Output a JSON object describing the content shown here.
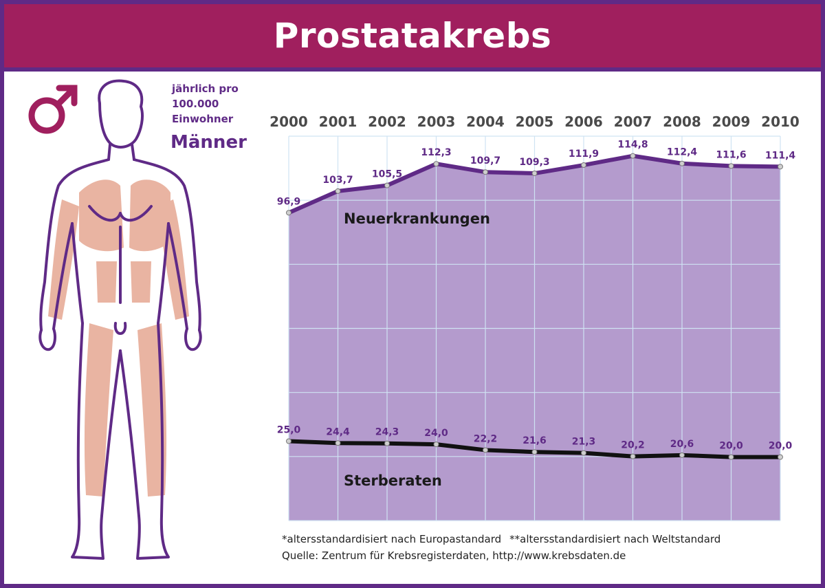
{
  "header": {
    "title": "Prostatakrebs"
  },
  "unit_label": [
    "jährlich pro",
    "100.000",
    "Einwohner"
  ],
  "group_label": "Männer",
  "footer": {
    "note1": "*altersstandardisiert nach Europastandard",
    "note2": "**altersstandardisiert nach Weltstandard",
    "source": "Quelle: Zentrum für Krebsregisterdaten, http://www.krebsdaten.de"
  },
  "icons": {
    "gender": "male-symbol-icon",
    "figure": "male-body-figure"
  },
  "colors": {
    "title_bg": "#a01f5e",
    "frame": "#5f2a86",
    "area_fill": "#b49bcd",
    "incidence_line": "#5f2a86",
    "mortality_line": "#111111",
    "grid": "#cfe3f2",
    "value_label": "#5f2a86"
  },
  "chart_data": {
    "type": "area",
    "categories": [
      "2000",
      "2001",
      "2002",
      "2003",
      "2004",
      "2005",
      "2006",
      "2007",
      "2008",
      "2009",
      "2010"
    ],
    "x_tick_labels": [
      "2000",
      "2001",
      "2002",
      "2003",
      "2004",
      "2005",
      "2006",
      "2007",
      "2008",
      "2009",
      "2010"
    ],
    "series": [
      {
        "name": "Neuerkrankungen",
        "values": [
          96.9,
          103.7,
          105.5,
          112.3,
          109.7,
          109.3,
          111.9,
          114.8,
          112.4,
          111.6,
          111.4
        ],
        "labels": [
          "96,9",
          "103,7",
          "105,5",
          "112,3",
          "109,7",
          "109,3",
          "111,9",
          "114,8",
          "112,4",
          "111,6",
          "111,4"
        ]
      },
      {
        "name": "Sterberaten",
        "values": [
          25.0,
          24.4,
          24.3,
          24.0,
          22.2,
          21.6,
          21.3,
          20.2,
          20.6,
          20.0,
          20.0
        ],
        "labels": [
          "25,0",
          "24,4",
          "24,3",
          "24,0",
          "22,2",
          "21,6",
          "21,3",
          "20,2",
          "20,6",
          "20,0",
          "20,0"
        ]
      }
    ],
    "ylim": [
      0,
      121
    ],
    "grid": true,
    "legend": "inline labels on series"
  }
}
